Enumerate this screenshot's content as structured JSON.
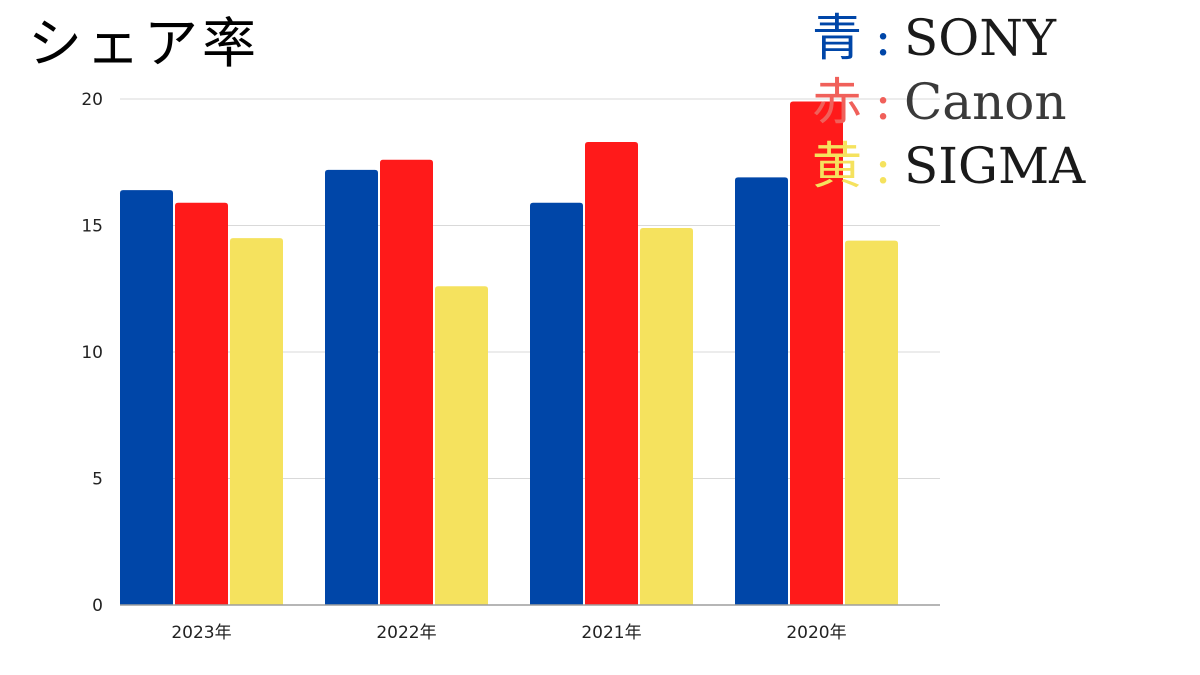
{
  "chart_data": {
    "type": "bar",
    "title": "シェア率",
    "categories": [
      "2023年",
      "2022年",
      "2021年",
      "2020年"
    ],
    "series": [
      {
        "name": "SONY",
        "color": "#0046a8",
        "values": [
          16.4,
          17.2,
          15.9,
          16.9
        ]
      },
      {
        "name": "Canon",
        "color": "#ff1a1a",
        "values": [
          15.9,
          17.6,
          18.3,
          19.9
        ]
      },
      {
        "name": "SIGMA",
        "color": "#f5e25e",
        "values": [
          14.5,
          12.6,
          14.9,
          14.4
        ]
      }
    ],
    "xlabel": "",
    "ylabel": "",
    "ylim": [
      0,
      20
    ],
    "yticks": [
      0,
      5,
      10,
      15,
      20
    ],
    "grid": true,
    "legend_position": "top-right",
    "legend": [
      {
        "marker": "青",
        "colon": ":",
        "name": "SONY",
        "color": "#0046a8",
        "colon_color": "#0046a8",
        "name_color": "#1a1a1a"
      },
      {
        "marker": "赤",
        "colon": ":",
        "name": "Canon",
        "color": "#f0605a",
        "colon_color": "#f0605a",
        "name_color": "#3a3a3a"
      },
      {
        "marker": "黄",
        "colon": ":",
        "name": "SIGMA",
        "color": "#f5e25e",
        "colon_color": "#f5e25e",
        "name_color": "#1a1a1a"
      }
    ]
  }
}
